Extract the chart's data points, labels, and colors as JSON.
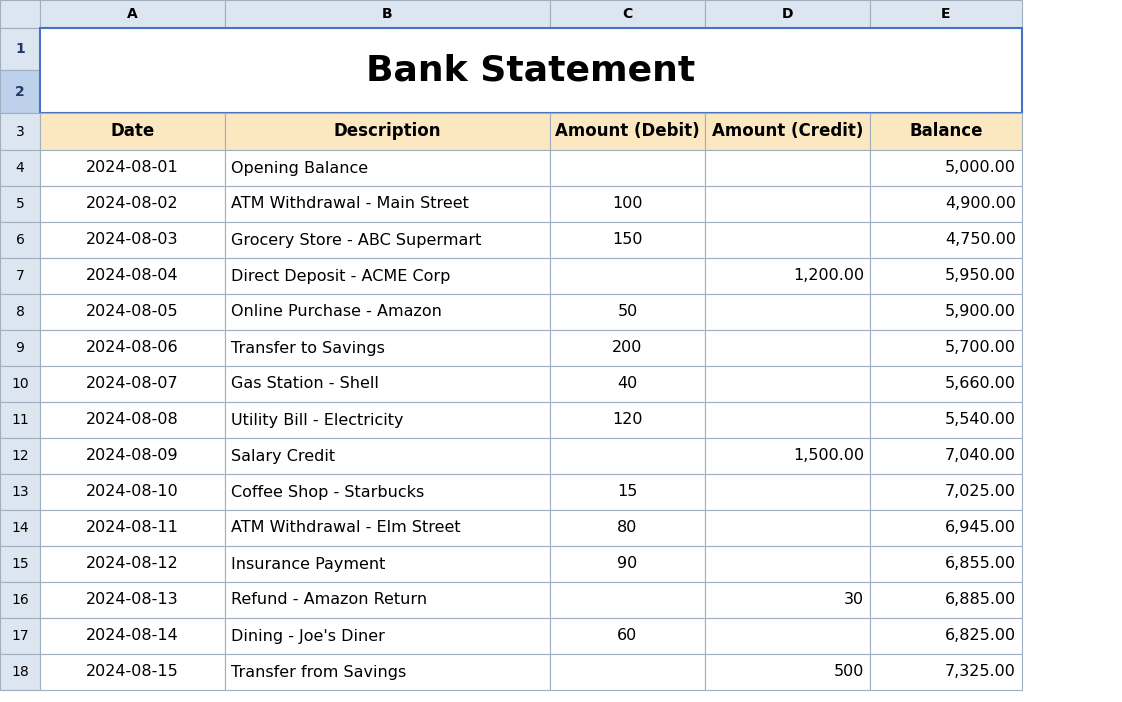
{
  "title": "Bank Statement",
  "title_fontsize": 26,
  "title_fontweight": "bold",
  "col_headers": [
    "Date",
    "Description",
    "Amount (Debit)",
    "Amount (Credit)",
    "Balance"
  ],
  "col_letters": [
    "A",
    "B",
    "C",
    "D",
    "E"
  ],
  "rows": [
    [
      "2024-08-01",
      "Opening Balance",
      "",
      "",
      "5,000.00"
    ],
    [
      "2024-08-02",
      "ATM Withdrawal - Main Street",
      "100",
      "",
      "4,900.00"
    ],
    [
      "2024-08-03",
      "Grocery Store - ABC Supermart",
      "150",
      "",
      "4,750.00"
    ],
    [
      "2024-08-04",
      "Direct Deposit - ACME Corp",
      "",
      "1,200.00",
      "5,950.00"
    ],
    [
      "2024-08-05",
      "Online Purchase - Amazon",
      "50",
      "",
      "5,900.00"
    ],
    [
      "2024-08-06",
      "Transfer to Savings",
      "200",
      "",
      "5,700.00"
    ],
    [
      "2024-08-07",
      "Gas Station - Shell",
      "40",
      "",
      "5,660.00"
    ],
    [
      "2024-08-08",
      "Utility Bill - Electricity",
      "120",
      "",
      "5,540.00"
    ],
    [
      "2024-08-09",
      "Salary Credit",
      "",
      "1,500.00",
      "7,040.00"
    ],
    [
      "2024-08-10",
      "Coffee Shop - Starbucks",
      "15",
      "",
      "7,025.00"
    ],
    [
      "2024-08-11",
      "ATM Withdrawal - Elm Street",
      "80",
      "",
      "6,945.00"
    ],
    [
      "2024-08-12",
      "Insurance Payment",
      "90",
      "",
      "6,855.00"
    ],
    [
      "2024-08-13",
      "Refund - Amazon Return",
      "",
      "30",
      "6,885.00"
    ],
    [
      "2024-08-14",
      "Dining - Joe's Diner",
      "60",
      "",
      "6,825.00"
    ],
    [
      "2024-08-15",
      "Transfer from Savings",
      "",
      "500",
      "7,325.00"
    ]
  ],
  "row_numbers": [
    "4",
    "5",
    "6",
    "7",
    "8",
    "9",
    "10",
    "11",
    "12",
    "13",
    "14",
    "15",
    "16",
    "17",
    "18"
  ],
  "header_bg_light": "#dce6f1",
  "header_bg_medium": "#c5d9f1",
  "col_header_bg": "#fce8c0",
  "data_row_bg": "#ffffff",
  "grid_line_color": "#a0aec0",
  "title_border_color": "#4472c4",
  "title_row_bg": "#ffffff",
  "row_number_bg": "#dce6f1",
  "row_number_bg_selected": "#bdd1ed",
  "col_letter_bg": "#dce6f1",
  "font_color": "#000000",
  "font_size": 11.5,
  "header_font_size": 12,
  "letter_font_size": 10,
  "row_num_font_size": 10,
  "figwidth": 11.22,
  "figheight": 7.02,
  "dpi": 100
}
